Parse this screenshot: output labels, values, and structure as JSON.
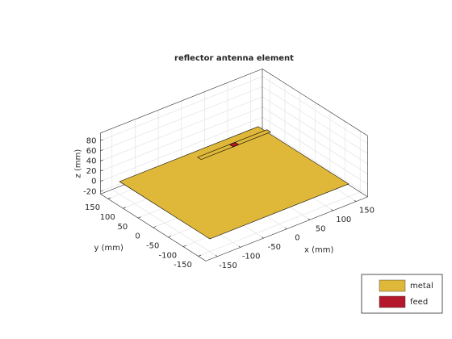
{
  "chart_data": {
    "type": "surface3d",
    "title": "reflector antenna element",
    "xlabel": "x (mm)",
    "ylabel": "y (mm)",
    "zlabel": "z (mm)",
    "xlim": [
      -175,
      175
    ],
    "ylim": [
      -175,
      175
    ],
    "zlim": [
      -25,
      95
    ],
    "xticks": [
      -150,
      -100,
      -50,
      0,
      50,
      100,
      150
    ],
    "yticks": [
      -150,
      -100,
      -50,
      0,
      50,
      100,
      150
    ],
    "zticks": [
      -20,
      0,
      20,
      40,
      60,
      80
    ],
    "grid": true,
    "legend": "lower-right",
    "series": [
      {
        "name": "metal",
        "color": "#dfb83a",
        "shapes": [
          {
            "x": [
              -150,
              150
            ],
            "y": [
              -150,
              150
            ],
            "z": 0
          },
          {
            "x": [
              -75,
              75
            ],
            "y": [
              -6,
              6
            ],
            "z": 75
          }
        ]
      },
      {
        "name": "feed",
        "color": "#b5172c",
        "shapes": [
          {
            "x": [
              -6,
              6
            ],
            "y": [
              -6,
              6
            ],
            "z": 75
          }
        ]
      }
    ]
  }
}
